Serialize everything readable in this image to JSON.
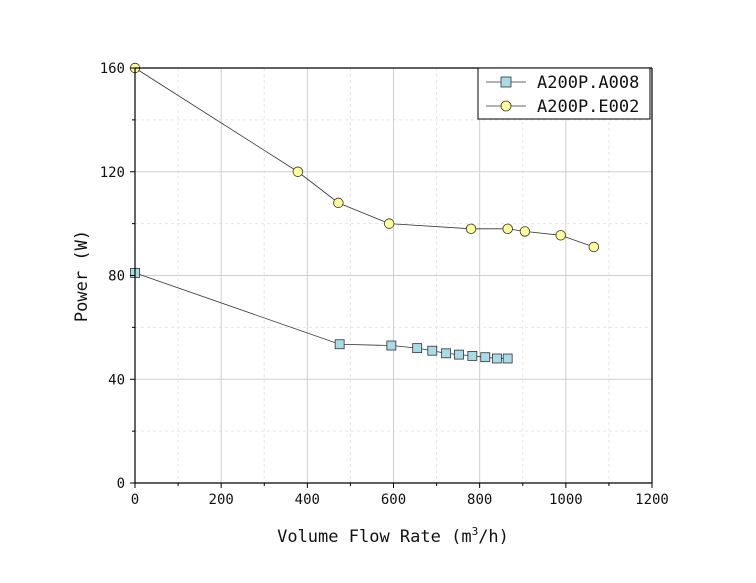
{
  "chart_data": {
    "type": "line",
    "title": "",
    "xlabel": "Volume Flow Rate (m",
    "xlabel_superscript": "3",
    "xlabel_suffix": "/h)",
    "ylabel": "Power (W)",
    "xlim": [
      0,
      1200
    ],
    "ylim": [
      0,
      160
    ],
    "xticks": [
      0,
      200,
      400,
      600,
      800,
      1000,
      1200
    ],
    "yticks": [
      0,
      40,
      80,
      120,
      160
    ],
    "xtick_labels": [
      "0",
      "200",
      "400",
      "600",
      "800",
      "1000",
      "1200"
    ],
    "ytick_labels": [
      "0",
      "40",
      "80",
      "120",
      "160"
    ],
    "grid": true,
    "legend_position": "top-right",
    "series": [
      {
        "name": "A200P.A008",
        "marker": "square",
        "color": "#a8dbe6",
        "x": [
          0,
          475,
          595,
          655,
          690,
          722,
          752,
          783,
          813,
          840,
          865
        ],
        "y": [
          81,
          53.5,
          53,
          52,
          51,
          50,
          49.5,
          49,
          48.5,
          48,
          48
        ]
      },
      {
        "name": "A200P.E002",
        "marker": "circle",
        "color": "#ffff99",
        "x": [
          0,
          378,
          472,
          590,
          780,
          865,
          905,
          988,
          1065
        ],
        "y": [
          160,
          120,
          108,
          100,
          98,
          98,
          97,
          95.5,
          91
        ]
      }
    ]
  },
  "colors": {
    "line": "#333333",
    "grid_major": "#cfcfcf",
    "grid_minor": "#e6e6e6",
    "axis": "#000000"
  }
}
